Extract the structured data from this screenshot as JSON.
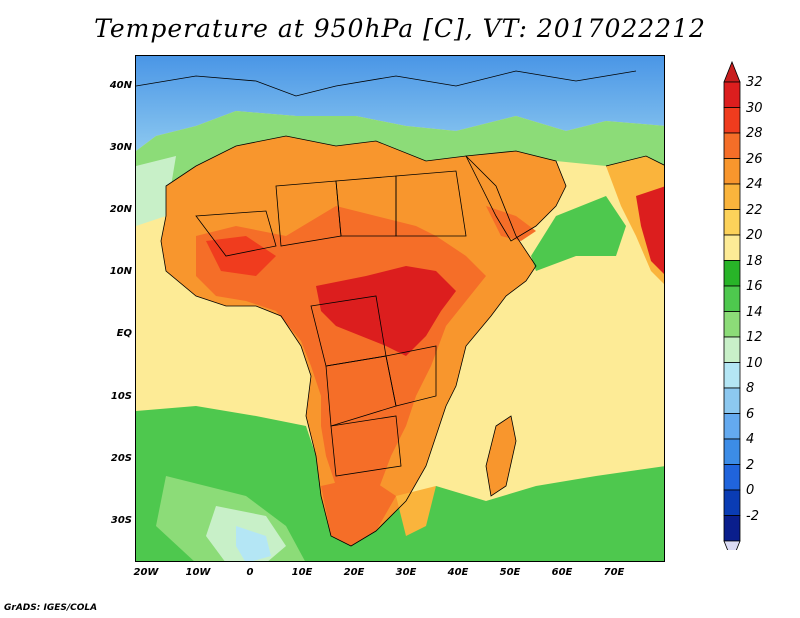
{
  "title": "Temperature at 950hPa [C], VT: 2017022212",
  "credit": "GrADS: IGES/COLA",
  "y_ticks": [
    "40N",
    "30N",
    "20N",
    "10N",
    "EQ",
    "10S",
    "20S",
    "30S"
  ],
  "x_ticks": [
    "20W",
    "10W",
    "0",
    "10E",
    "20E",
    "30E",
    "40E",
    "50E",
    "60E",
    "70E"
  ],
  "colorbar": {
    "labels": [
      "32",
      "30",
      "28",
      "26",
      "24",
      "22",
      "20",
      "18",
      "16",
      "14",
      "12",
      "10",
      "8",
      "6",
      "4",
      "2",
      "0",
      "-2"
    ],
    "colors": [
      "#dc1e1e",
      "#f03c1e",
      "#f56e28",
      "#f8962d",
      "#fab43c",
      "#fcd25a",
      "#fdeb96",
      "#28b428",
      "#4ec84e",
      "#8cdc78",
      "#c8f0c8",
      "#b4e6f5",
      "#8cc8f0",
      "#64aaf0",
      "#3c8ce6",
      "#2064dc",
      "#0a3cb4",
      "#0a1e8c"
    ],
    "top_color": "#c81e1e",
    "bottom_color": "#dcdcf5"
  }
}
